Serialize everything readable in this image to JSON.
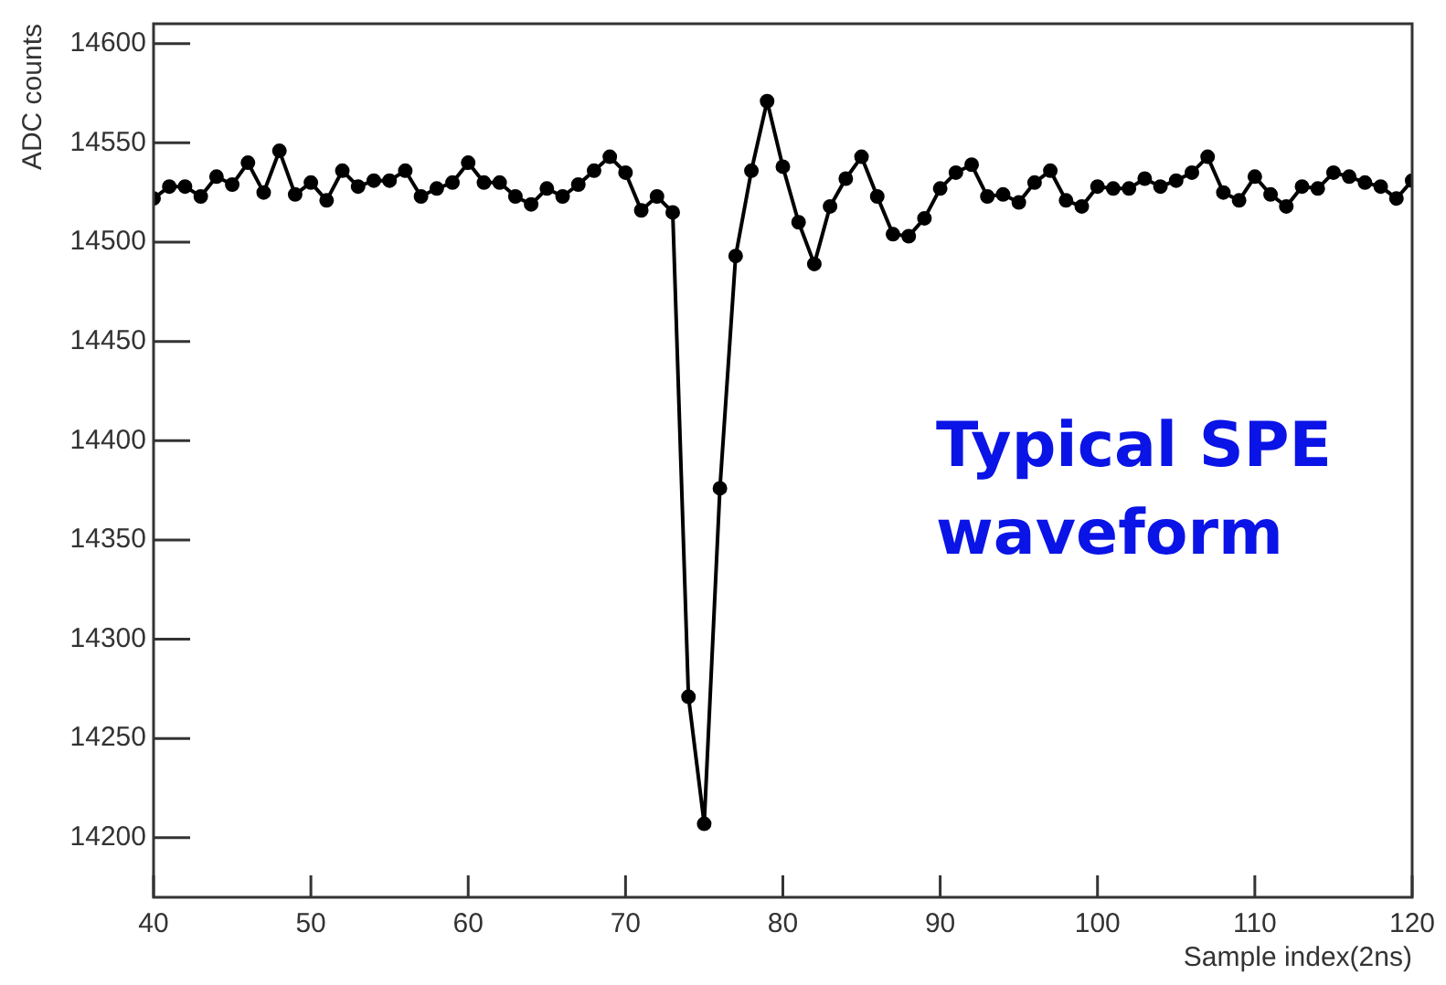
{
  "chart_data": {
    "type": "line",
    "xlabel": "Sample index(2ns)",
    "ylabel": "ADC counts",
    "annotations": [
      "Typical SPE waveform"
    ],
    "x": [
      40,
      41,
      42,
      43,
      44,
      45,
      46,
      47,
      48,
      49,
      50,
      51,
      52,
      53,
      54,
      55,
      56,
      57,
      58,
      59,
      60,
      61,
      62,
      63,
      64,
      65,
      66,
      67,
      68,
      69,
      70,
      71,
      72,
      73,
      74,
      75,
      76,
      77,
      78,
      79,
      80,
      81,
      82,
      83,
      84,
      85,
      86,
      87,
      88,
      89,
      90,
      91,
      92,
      93,
      94,
      95,
      96,
      97,
      98,
      99,
      100,
      101,
      102,
      103,
      104,
      105,
      106,
      107,
      108,
      109,
      110,
      111,
      112,
      113,
      114,
      115,
      116,
      117,
      118,
      119,
      120
    ],
    "series": [
      {
        "color": "#000000",
        "values": [
          14522,
          14528,
          14528,
          14523,
          14533,
          14529,
          14540,
          14525,
          14546,
          14524,
          14530,
          14521,
          14536,
          14528,
          14531,
          14531,
          14536,
          14523,
          14527,
          14530,
          14540,
          14530,
          14530,
          14523,
          14519,
          14527,
          14523,
          14529,
          14536,
          14543,
          14535,
          14516,
          14523,
          14515,
          14271,
          14207,
          14376,
          14493,
          14536,
          14571,
          14538,
          14510,
          14489,
          14518,
          14532,
          14543,
          14523,
          14504,
          14503,
          14512,
          14527,
          14535,
          14539,
          14523,
          14524,
          14520,
          14530,
          14536,
          14521,
          14518,
          14528,
          14527,
          14527,
          14532,
          14528,
          14531,
          14535,
          14543,
          14525,
          14521,
          14533,
          14524,
          14518,
          14528,
          14527,
          14535,
          14533,
          14530,
          14528,
          14522,
          14531
        ]
      }
    ],
    "xlim": [
      40,
      120
    ],
    "xticks": [
      40,
      50,
      60,
      70,
      80,
      90,
      100,
      110,
      120
    ],
    "ylim": [
      14170,
      14610
    ],
    "yticks": [
      14200,
      14250,
      14300,
      14350,
      14400,
      14450,
      14500,
      14550,
      14600
    ],
    "grid": false,
    "legend": false,
    "marker": "circle",
    "line_style": "solid"
  }
}
